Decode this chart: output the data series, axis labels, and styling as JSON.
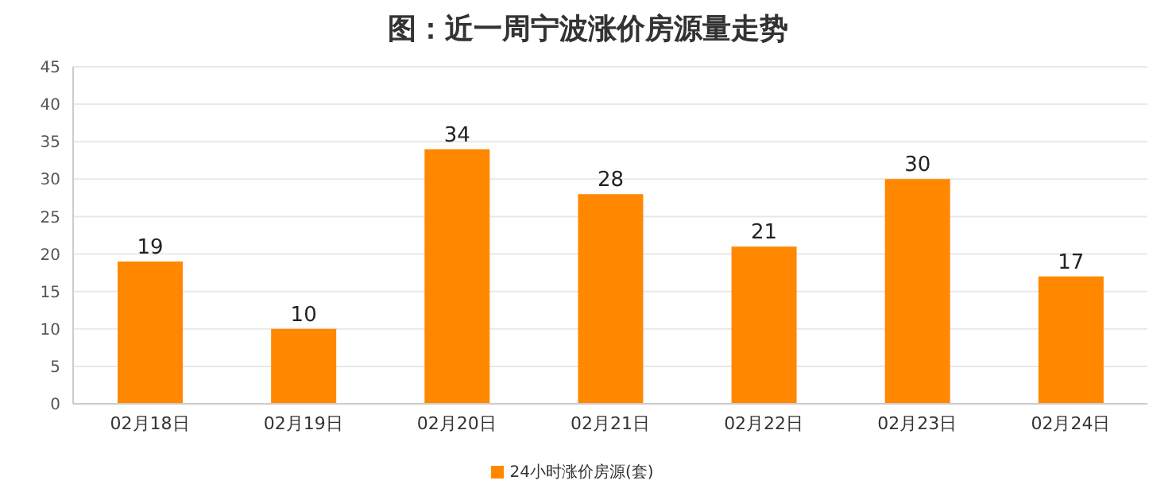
{
  "chart_data": {
    "type": "bar",
    "title": "图：近一周宁波涨价房源量走势",
    "categories": [
      "02月18日",
      "02月19日",
      "02月20日",
      "02月21日",
      "02月22日",
      "02月23日",
      "02月24日"
    ],
    "series": [
      {
        "name": "24小时涨价房源(套)",
        "color": "#ff8800",
        "values": [
          19,
          10,
          34,
          28,
          21,
          30,
          17
        ]
      }
    ],
    "ylim": [
      0,
      45
    ],
    "yticks": [
      0,
      5,
      10,
      15,
      20,
      25,
      30,
      35,
      40,
      45
    ],
    "grid": "y",
    "legend": "bottom",
    "data_labels": true
  }
}
